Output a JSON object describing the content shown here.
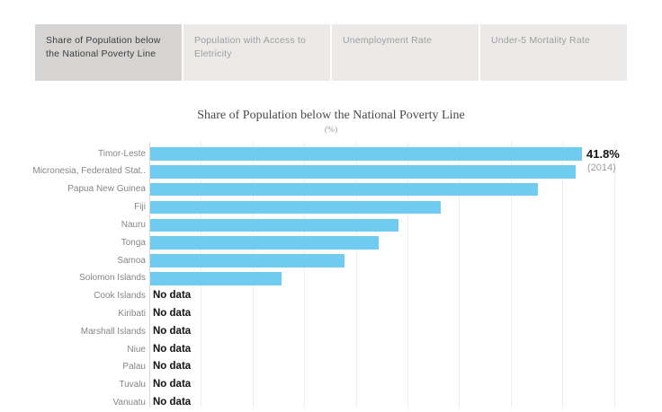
{
  "tabs": [
    {
      "label": "Share of Population below the National Poverty Line",
      "active": true
    },
    {
      "label": "Population with Access to Eletricity",
      "active": false
    },
    {
      "label": "Unemployment Rate",
      "active": false
    },
    {
      "label": "Under-5 Mortality Rate",
      "active": false
    }
  ],
  "chart": {
    "title": "Share of Population below the National Poverty Line",
    "subtitle": "(%)",
    "no_data_label": "No data",
    "annotation": {
      "value_label": "41.8%",
      "year_label": "(2014)"
    },
    "colors": {
      "bar": "#6FCBEF",
      "active_tab_bg": "#D5D4D2",
      "active_tab_text": "#3D3D3D",
      "inactive_tab_bg": "#EBEAE8",
      "inactive_tab_text": "#9E9E9E",
      "gridline": "#EFEFEF",
      "axis_line": "#D8D8D8",
      "category_label_text": "#858585",
      "no_data_text": "#111111",
      "annotation_value_text": "#141414",
      "annotation_year_text": "#9E9E9E",
      "title_text": "#4A4A4A"
    }
  },
  "chart_data": {
    "type": "bar",
    "orientation": "horizontal",
    "title": "Share of Population below the National Poverty Line",
    "unit": "%",
    "categories": [
      "Timor-Leste",
      "Micronesia, Federated Stat..",
      "Papua New Guinea",
      "Fiji",
      "Nauru",
      "Tonga",
      "Samoa",
      "Solomon Islands",
      "Cook Islands",
      "Kiribati",
      "Marshall Islands",
      "Niue",
      "Palau",
      "Tuvalu",
      "Vanuatu"
    ],
    "values": [
      41.8,
      41.2,
      37.5,
      28.1,
      24.0,
      22.1,
      18.8,
      12.7,
      null,
      null,
      null,
      null,
      null,
      null,
      null
    ],
    "labeled_point": {
      "category": "Timor-Leste",
      "value": 41.8,
      "year": "(2014)"
    },
    "xlim": [
      0,
      47
    ],
    "gridlines_pct": [
      5,
      10,
      15,
      20,
      25,
      30,
      35,
      40,
      45
    ],
    "grid": "vertical",
    "legend": "none"
  }
}
